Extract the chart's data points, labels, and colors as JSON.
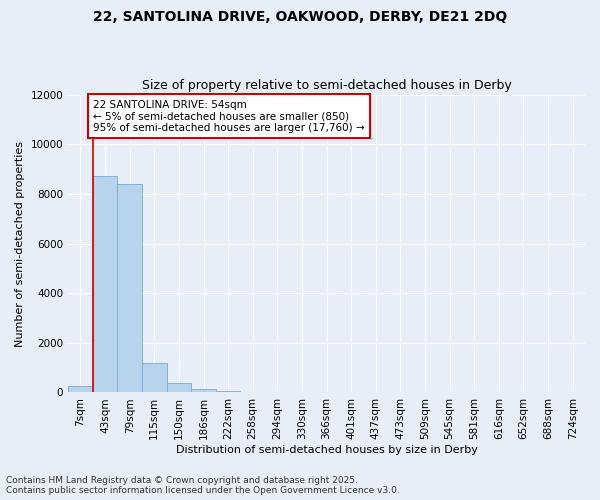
{
  "title_line1": "22, SANTOLINA DRIVE, OAKWOOD, DERBY, DE21 2DQ",
  "title_line2": "Size of property relative to semi-detached houses in Derby",
  "xlabel": "Distribution of semi-detached houses by size in Derby",
  "ylabel": "Number of semi-detached properties",
  "categories": [
    "7sqm",
    "43sqm",
    "79sqm",
    "115sqm",
    "150sqm",
    "186sqm",
    "222sqm",
    "258sqm",
    "294sqm",
    "330sqm",
    "366sqm",
    "401sqm",
    "437sqm",
    "473sqm",
    "509sqm",
    "545sqm",
    "581sqm",
    "616sqm",
    "652sqm",
    "688sqm",
    "724sqm"
  ],
  "values": [
    270,
    8720,
    8380,
    1180,
    390,
    120,
    50,
    10,
    5,
    3,
    2,
    1,
    1,
    1,
    1,
    0,
    0,
    0,
    0,
    0,
    0
  ],
  "bar_color": "#b8d4ec",
  "bar_edge_color": "#7aaad4",
  "vline_x": 0.5,
  "vline_color": "#cc0000",
  "annotation_text": "22 SANTOLINA DRIVE: 54sqm\n← 5% of semi-detached houses are smaller (850)\n95% of semi-detached houses are larger (17,760) →",
  "annotation_box_color": "#ffffff",
  "annotation_box_edge": "#cc0000",
  "ylim": [
    0,
    12000
  ],
  "yticks": [
    0,
    2000,
    4000,
    6000,
    8000,
    10000,
    12000
  ],
  "background_color": "#e8eef8",
  "footer_line1": "Contains HM Land Registry data © Crown copyright and database right 2025.",
  "footer_line2": "Contains public sector information licensed under the Open Government Licence v3.0.",
  "title_fontsize": 10,
  "subtitle_fontsize": 9,
  "axis_label_fontsize": 8,
  "tick_fontsize": 7.5,
  "annotation_fontsize": 7.5,
  "footer_fontsize": 6.5
}
